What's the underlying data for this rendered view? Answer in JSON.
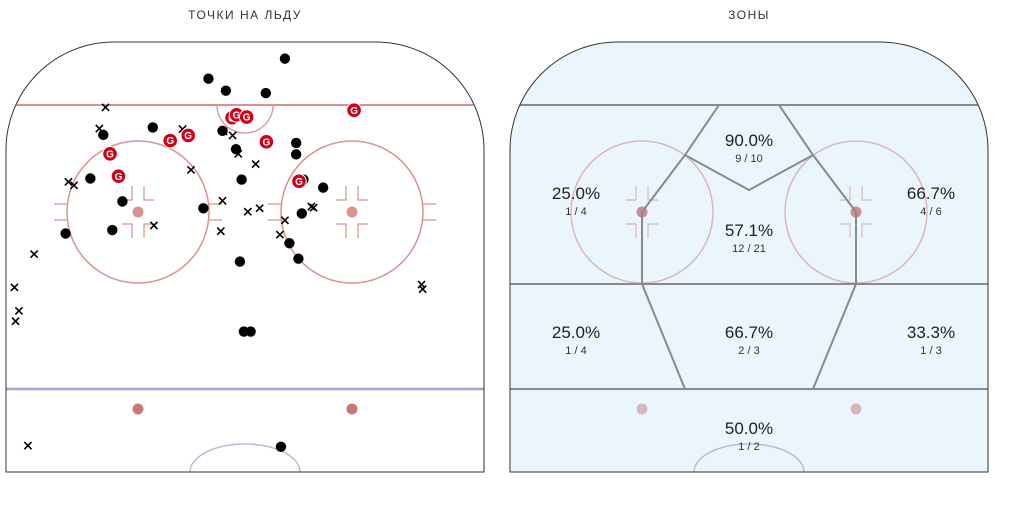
{
  "panels": {
    "left_title": "ТОЧКИ НА ЛЬДУ",
    "right_title": "ЗОНЫ"
  },
  "chart_data": [
    {
      "type": "scatter",
      "title": "ТОЧКИ НА ЛЬДУ",
      "xlim": [
        -42.5,
        42.5
      ],
      "ylim": [
        25,
        100
      ],
      "legend_markers": {
        "goal": "G",
        "shot": "filled circle",
        "miss": "x"
      },
      "colors": {
        "goal": "#d0021b",
        "shot": "#000000",
        "miss": "#000000",
        "rink_red": "#d9928f",
        "rink_blue": "#9fa6c9"
      },
      "series": [
        {
          "name": "goal",
          "points": [
            [
              -24,
              80.5
            ],
            [
              -22.5,
              76.6
            ],
            [
              -13.3,
              82.8
            ],
            [
              -10.1,
              83.7
            ],
            [
              -2.3,
              86.8
            ],
            [
              -1.5,
              87.3
            ],
            [
              0.3,
              86.9
            ],
            [
              3.8,
              82.6
            ],
            [
              9.6,
              75.7
            ],
            [
              19.4,
              88.1
            ]
          ]
        },
        {
          "name": "shot",
          "points": [
            [
              -6.5,
              93.6
            ],
            [
              -10.5,
              83.5
            ],
            [
              -3.4,
              91.5
            ],
            [
              3.7,
              91.1
            ],
            [
              7.1,
              97.1
            ],
            [
              -16.4,
              85.1
            ],
            [
              -4,
              84.5
            ],
            [
              -1.6,
              81.3
            ],
            [
              9.1,
              82.4
            ],
            [
              9.1,
              80.4
            ],
            [
              -25.2,
              83.8
            ],
            [
              -27.5,
              76.2
            ],
            [
              -21.8,
              72.2
            ],
            [
              -0.6,
              76.0
            ],
            [
              10.4,
              76.0
            ],
            [
              -7.4,
              71.0
            ],
            [
              13.9,
              74.6
            ],
            [
              10.1,
              70.1
            ],
            [
              7.9,
              64.9
            ],
            [
              -31.9,
              66.6
            ],
            [
              -23.6,
              67.2
            ],
            [
              -0.9,
              61.7
            ],
            [
              9.5,
              62.2
            ],
            [
              -0.2,
              49.5
            ],
            [
              1.0,
              49.5
            ],
            [
              6.4,
              29.4
            ]
          ]
        },
        {
          "name": "miss",
          "points": [
            [
              -24.8,
              88.6
            ],
            [
              -25.9,
              84.9
            ],
            [
              -13.6,
              82.3
            ],
            [
              -11.1,
              84.8
            ],
            [
              -3.8,
              84.4
            ],
            [
              -2.2,
              83.7
            ],
            [
              -1.2,
              80.5
            ],
            [
              1.9,
              78.7
            ],
            [
              -9.6,
              77.7
            ],
            [
              -31.4,
              75.6
            ],
            [
              -30.4,
              75.0
            ],
            [
              -4.0,
              72.3
            ],
            [
              12.2,
              71.1
            ],
            [
              11.8,
              71.3
            ],
            [
              2.6,
              71.0
            ],
            [
              0.5,
              70.4
            ],
            [
              7.1,
              68.9
            ],
            [
              -4.3,
              67.0
            ],
            [
              6.2,
              66.4
            ],
            [
              -16.2,
              68.0
            ],
            [
              -40.2,
              53.1
            ],
            [
              -40.8,
              51.3
            ],
            [
              -37.5,
              63.0
            ],
            [
              -41,
              57.2
            ],
            [
              31.4,
              57.7
            ],
            [
              31.6,
              56.9
            ],
            [
              -38.6,
              29.6
            ]
          ]
        }
      ]
    },
    {
      "type": "table",
      "title": "ЗОНЫ",
      "zones": [
        {
          "id": "slot-high",
          "pct": "90.0%",
          "frac": "9 / 10"
        },
        {
          "id": "left-circle",
          "pct": "25.0%",
          "frac": "1 / 4"
        },
        {
          "id": "right-circle",
          "pct": "66.7%",
          "frac": "4 / 6"
        },
        {
          "id": "slot",
          "pct": "57.1%",
          "frac": "12 / 21"
        },
        {
          "id": "left-point",
          "pct": "25.0%",
          "frac": "1 / 4"
        },
        {
          "id": "center-point",
          "pct": "66.7%",
          "frac": "2 / 3"
        },
        {
          "id": "right-point",
          "pct": "33.3%",
          "frac": "1 / 3"
        },
        {
          "id": "neutral",
          "pct": "50.0%",
          "frac": "1 / 2"
        }
      ]
    }
  ]
}
